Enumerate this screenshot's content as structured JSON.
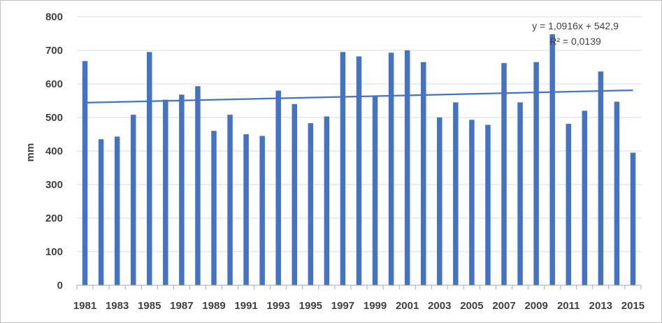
{
  "chart_data": {
    "type": "bar",
    "categories": [
      "1981",
      "1982",
      "1983",
      "1984",
      "1985",
      "1986",
      "1987",
      "1988",
      "1989",
      "1990",
      "1991",
      "1992",
      "1993",
      "1994",
      "1995",
      "1996",
      "1997",
      "1998",
      "1999",
      "2000",
      "2001",
      "2002",
      "2003",
      "2004",
      "2005",
      "2006",
      "2007",
      "2008",
      "2009",
      "2010",
      "2011",
      "2012",
      "2013",
      "2014",
      "2015"
    ],
    "x_tick_labels": [
      "1981",
      "1983",
      "1985",
      "1987",
      "1989",
      "1991",
      "1993",
      "1995",
      "1997",
      "1999",
      "2001",
      "2003",
      "2005",
      "2007",
      "2009",
      "2011",
      "2013",
      "2015"
    ],
    "values": [
      668,
      435,
      443,
      508,
      695,
      553,
      568,
      593,
      460,
      508,
      450,
      445,
      580,
      540,
      483,
      503,
      695,
      682,
      563,
      693,
      700,
      665,
      500,
      545,
      493,
      478,
      662,
      545,
      665,
      748,
      481,
      520,
      637,
      547,
      395
    ],
    "ylabel": "mm",
    "ylim": [
      0,
      800
    ],
    "y_ticks": [
      0,
      100,
      200,
      300,
      400,
      500,
      600,
      700,
      800
    ],
    "grid": true,
    "bar_color": "#4472c4",
    "trendline": {
      "slope": 1.0916,
      "intercept": 542.9,
      "equation_label": "y = 1,0916x + 542,9",
      "r2_label": "R² = 0,0139",
      "color": "#4472c4"
    }
  }
}
